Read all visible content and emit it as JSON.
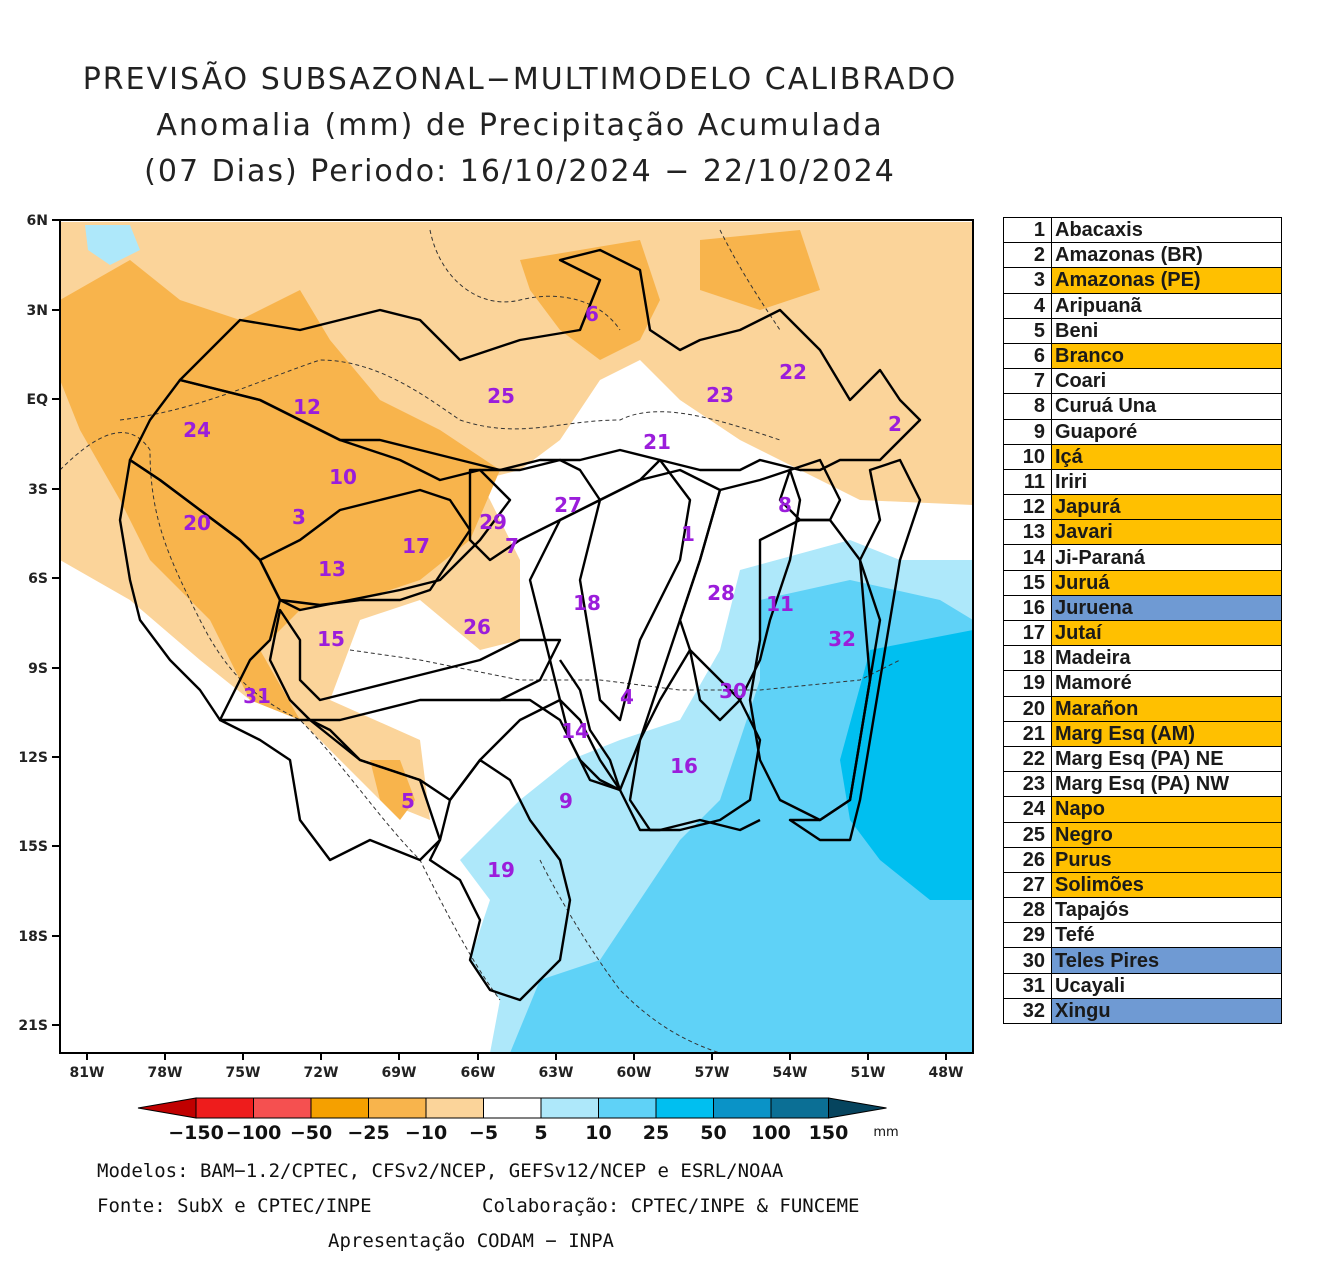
{
  "title": {
    "line1": "PREVISÃO SUBSAZONAL−MULTIMODELO CALIBRADO",
    "line2": "Anomalia (mm) de Precipitação Acumulada",
    "line3": "(07 Dias) Periodo: 16/10/2024 − 22/10/2024"
  },
  "map": {
    "lat_labels": [
      "6N",
      "3N",
      "EQ",
      "3S",
      "6S",
      "9S",
      "12S",
      "15S",
      "18S",
      "21S"
    ],
    "lon_labels": [
      "81W",
      "78W",
      "75W",
      "72W",
      "69W",
      "66W",
      "63W",
      "60W",
      "57W",
      "54W",
      "51W",
      "48W"
    ],
    "basin_numbers": [
      {
        "n": "1"
      },
      {
        "n": "2"
      },
      {
        "n": "3"
      },
      {
        "n": "4"
      },
      {
        "n": "5"
      },
      {
        "n": "6"
      },
      {
        "n": "7"
      },
      {
        "n": "8"
      },
      {
        "n": "9"
      },
      {
        "n": "10"
      },
      {
        "n": "11"
      },
      {
        "n": "12"
      },
      {
        "n": "13"
      },
      {
        "n": "14"
      },
      {
        "n": "15"
      },
      {
        "n": "16"
      },
      {
        "n": "17"
      },
      {
        "n": "18"
      },
      {
        "n": "19"
      },
      {
        "n": "20"
      },
      {
        "n": "21"
      },
      {
        "n": "22"
      },
      {
        "n": "23"
      },
      {
        "n": "24"
      },
      {
        "n": "25"
      },
      {
        "n": "26"
      },
      {
        "n": "27"
      },
      {
        "n": "28"
      },
      {
        "n": "29"
      },
      {
        "n": "30"
      },
      {
        "n": "31"
      },
      {
        "n": "32"
      }
    ]
  },
  "colorbar": {
    "colors": [
      "#c00000",
      "#ee1c1c",
      "#f55050",
      "#f5a000",
      "#f8b44c",
      "#fbd49a",
      "#ffffff",
      "#aee8fa",
      "#5fd2f7",
      "#00bff0",
      "#0a93c7",
      "#0b6f95",
      "#06445e"
    ],
    "labels": [
      "−150",
      "−100",
      "−50",
      "−25",
      "−10",
      "−5",
      "5",
      "10",
      "25",
      "50",
      "100",
      "150"
    ],
    "unit": "mm"
  },
  "footer": {
    "models": "Modelos: BAM−1.2/CPTEC, CFSv2/NCEP, GEFSv12/NCEP e ESRL/NOAA",
    "source": "Fonte: SubX e CPTEC/INPE",
    "collab": "Colaboração: CPTEC/INPE & FUNCEME",
    "presentation": "Apresentação CODAM − INPA"
  },
  "basin_table": [
    {
      "num": "1",
      "name": "Abacaxis",
      "color": "#ffffff"
    },
    {
      "num": "2",
      "name": "Amazonas (BR)",
      "color": "#ffffff"
    },
    {
      "num": "3",
      "name": "Amazonas (PE)",
      "color": "#ffc000"
    },
    {
      "num": "4",
      "name": "Aripuanã",
      "color": "#ffffff"
    },
    {
      "num": "5",
      "name": "Beni",
      "color": "#ffffff"
    },
    {
      "num": "6",
      "name": "Branco",
      "color": "#ffc000"
    },
    {
      "num": "7",
      "name": "Coari",
      "color": "#ffffff"
    },
    {
      "num": "8",
      "name": "Curuá Una",
      "color": "#ffffff"
    },
    {
      "num": "9",
      "name": "Guaporé",
      "color": "#ffffff"
    },
    {
      "num": "10",
      "name": "Içá",
      "color": "#ffc000"
    },
    {
      "num": "11",
      "name": "Iriri",
      "color": "#ffffff"
    },
    {
      "num": "12",
      "name": "Japurá",
      "color": "#ffc000"
    },
    {
      "num": "13",
      "name": "Javari",
      "color": "#ffc000"
    },
    {
      "num": "14",
      "name": "Ji-Paraná",
      "color": "#ffffff"
    },
    {
      "num": "15",
      "name": "Juruá",
      "color": "#ffc000"
    },
    {
      "num": "16",
      "name": "Juruena",
      "color": "#6f9ad3"
    },
    {
      "num": "17",
      "name": "Jutaí",
      "color": "#ffc000"
    },
    {
      "num": "18",
      "name": "Madeira",
      "color": "#ffffff"
    },
    {
      "num": "19",
      "name": "Mamoré",
      "color": "#ffffff"
    },
    {
      "num": "20",
      "name": "Marañon",
      "color": "#ffc000"
    },
    {
      "num": "21",
      "name": "Marg Esq (AM)",
      "color": "#ffc000"
    },
    {
      "num": "22",
      "name": "Marg Esq (PA) NE",
      "color": "#ffffff"
    },
    {
      "num": "23",
      "name": "Marg Esq (PA) NW",
      "color": "#ffffff"
    },
    {
      "num": "24",
      "name": "Napo",
      "color": "#ffc000"
    },
    {
      "num": "25",
      "name": "Negro",
      "color": "#ffc000"
    },
    {
      "num": "26",
      "name": "Purus",
      "color": "#ffc000"
    },
    {
      "num": "27",
      "name": "Solimões",
      "color": "#ffc000"
    },
    {
      "num": "28",
      "name": "Tapajós",
      "color": "#ffffff"
    },
    {
      "num": "29",
      "name": "Tefé",
      "color": "#ffffff"
    },
    {
      "num": "30",
      "name": "Teles Pires",
      "color": "#6f9ad3"
    },
    {
      "num": "31",
      "name": "Ucayali",
      "color": "#ffffff"
    },
    {
      "num": "32",
      "name": "Xingu",
      "color": "#6f9ad3"
    }
  ]
}
